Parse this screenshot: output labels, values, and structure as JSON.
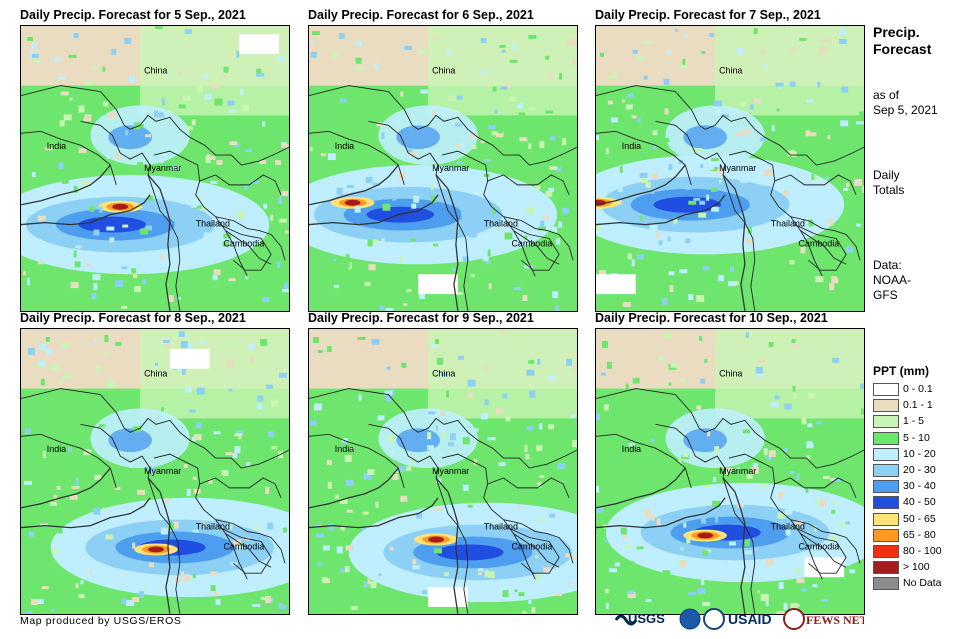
{
  "panels": [
    {
      "title": "Daily Precip. Forecast for 5 Sep., 2021"
    },
    {
      "title": "Daily Precip. Forecast for 6 Sep., 2021"
    },
    {
      "title": "Daily Precip. Forecast for 7 Sep., 2021"
    },
    {
      "title": "Daily Precip. Forecast for 8 Sep., 2021"
    },
    {
      "title": "Daily Precip. Forecast for 9 Sep., 2021"
    },
    {
      "title": "Daily Precip. Forecast for 10 Sep., 2021"
    }
  ],
  "map_labels": {
    "china": "China",
    "india": "India",
    "myanmar": "Myanmar",
    "thailand": "Thailand",
    "cambodia": "Cambodia"
  },
  "side": {
    "title_line1": "Precip.",
    "title_line2": "Forecast",
    "asof_line1": "as of",
    "asof_line2": "Sep 5, 2021",
    "daily_line1": "Daily",
    "daily_line2": "Totals",
    "data_line1": "Data:",
    "data_line2": "NOAA-",
    "data_line3": "GFS"
  },
  "legend": {
    "title": "PPT (mm)",
    "items": [
      {
        "label": "0 - 0.1",
        "color": "#ffffff"
      },
      {
        "label": "0.1 - 1",
        "color": "#e9dcc0"
      },
      {
        "label": "1 - 5",
        "color": "#c8f5b4"
      },
      {
        "label": "5 - 10",
        "color": "#6ee66e"
      },
      {
        "label": "10 - 20",
        "color": "#bfefff"
      },
      {
        "label": "20 - 30",
        "color": "#8cd0f5"
      },
      {
        "label": "30 - 40",
        "color": "#4e9ef0"
      },
      {
        "label": "40 - 50",
        "color": "#1f4ee0"
      },
      {
        "label": "50 - 65",
        "color": "#ffe27a"
      },
      {
        "label": "65 - 80",
        "color": "#ff9a1e"
      },
      {
        "label": "80 - 100",
        "color": "#f03010"
      },
      {
        "label": "> 100",
        "color": "#a61c1c"
      },
      {
        "label": "No Data",
        "color": "#8c8c8c"
      }
    ]
  },
  "credit": "Map produced by USGS/EROS",
  "logos": {
    "usgs": "USGS",
    "usaid": "USAID",
    "fewsnet": "FEWS NET"
  }
}
